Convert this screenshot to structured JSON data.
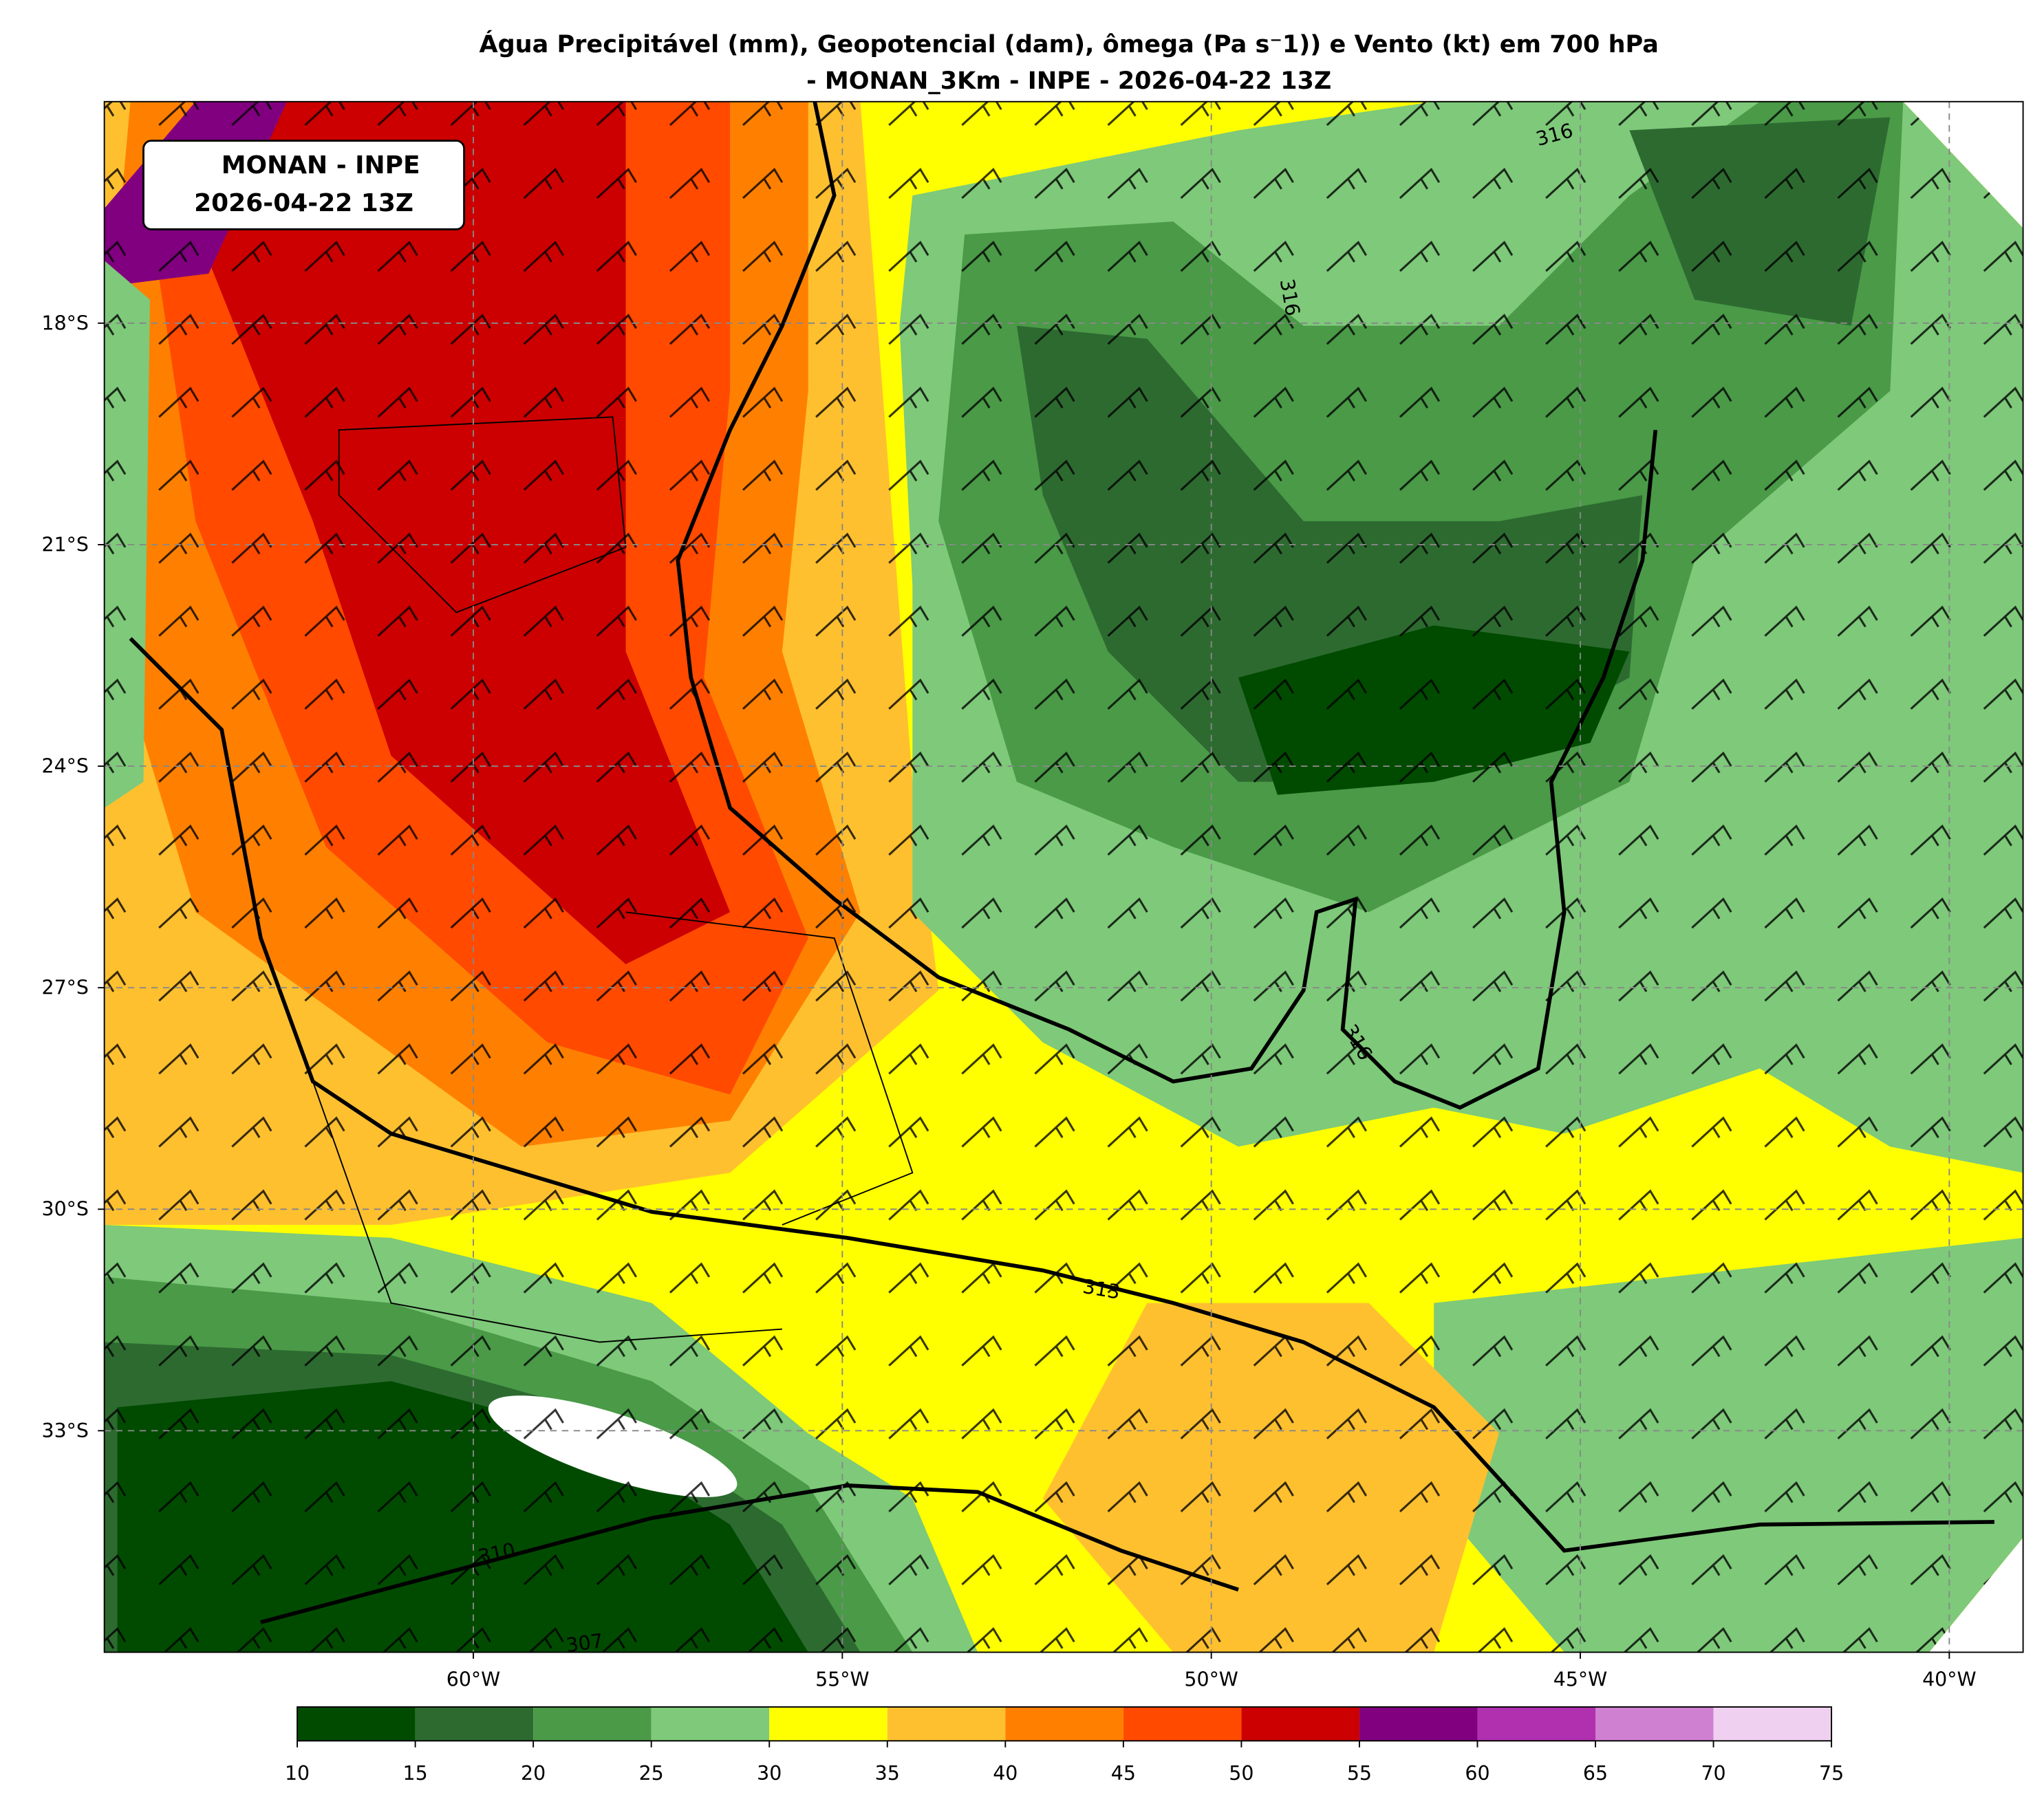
{
  "title": [
    "Água Precipitável (mm), Geopotencial (dam), ômega (Pa s⁻1)) e Vento (kt) em 700 hPa",
    "- MONAN_3Km - INPE - 2026-04-22 13Z"
  ],
  "info_box": [
    "MONAN - INPE",
    "2026-04-22 13Z"
  ],
  "map": {
    "xlim": [
      -65,
      -39
    ],
    "ylim": [
      -36,
      -15
    ],
    "xticks": [
      {
        "value": -60,
        "label": "60°W"
      },
      {
        "value": -55,
        "label": "55°W"
      },
      {
        "value": -50,
        "label": "50°W"
      },
      {
        "value": -45,
        "label": "45°W"
      },
      {
        "value": -40,
        "label": "40°W"
      }
    ],
    "yticks": [
      {
        "value": -18,
        "label": "18°S"
      },
      {
        "value": -21,
        "label": "21°S"
      },
      {
        "value": -24,
        "label": "24°S"
      },
      {
        "value": -27,
        "label": "27°S"
      },
      {
        "value": -30,
        "label": "30°S"
      },
      {
        "value": -33,
        "label": "33°S"
      }
    ],
    "grid": true
  },
  "contour_labels": [
    "316",
    "316",
    "316",
    "313",
    "310",
    "307"
  ],
  "colorbar": {
    "ticks": [
      10,
      15,
      20,
      25,
      30,
      35,
      40,
      45,
      50,
      55,
      60,
      65,
      70,
      75
    ],
    "colors": [
      "#004b00",
      "#2d6a30",
      "#4a9a48",
      "#7ec97a",
      "#ffff00",
      "#ffc030",
      "#ff8000",
      "#ff4a00",
      "#cc0000",
      "#800080",
      "#b030b0",
      "#d080d0",
      "#f0d0f0"
    ]
  }
}
